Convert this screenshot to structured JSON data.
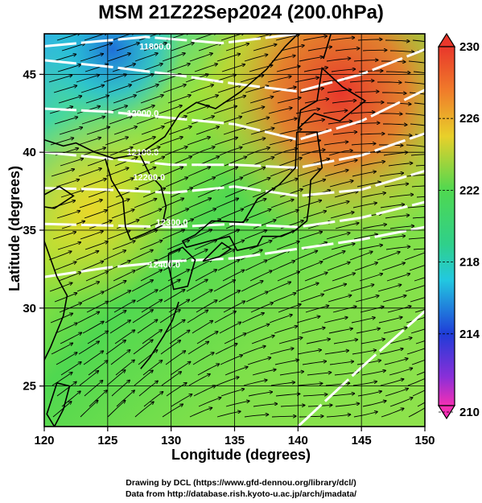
{
  "title": "MSM 21Z22Sep2024 (200.0hPa)",
  "x_axis": {
    "label": "Longitude (degrees)",
    "ticks": [
      "120",
      "125",
      "130",
      "135",
      "140",
      "145",
      "150"
    ]
  },
  "y_axis": {
    "label": "Latitude  (degrees)",
    "ticks": [
      "25",
      "30",
      "35",
      "40",
      "45"
    ]
  },
  "colorbar": {
    "ticks": [
      "230",
      "226",
      "222",
      "218",
      "214",
      "210"
    ],
    "min": 210,
    "max": 230
  },
  "contour_labels": [
    "11800.0",
    "12000.0",
    "12100.0",
    "12200.0",
    "12300.0",
    "12400.0"
  ],
  "credits": {
    "line1": "Drawing by DCL (https://www.gfd-dennou.org/library/dcl/)",
    "line2": "Data from http://database.rish.kyoto-u.ac.jp/arch/jmadata/"
  },
  "chart_data": {
    "type": "heatmap",
    "title": "MSM 21Z22Sep2024 (200.0hPa)",
    "xlabel": "Longitude (degrees)",
    "ylabel": "Latitude  (degrees)",
    "xlim": [
      120,
      150
    ],
    "ylim": [
      22.4,
      47.6
    ],
    "color_range": [
      210,
      230
    ],
    "overlays": [
      "streamlines",
      "geopotential height contours (white)",
      "coastlines"
    ],
    "contour_levels": [
      11800,
      12000,
      12100,
      12200,
      12300,
      12400
    ]
  },
  "colors": {
    "cbar_top": "#e8372b",
    "cbar_mid": "#2fd05a",
    "cbar_cyan": "#22c8e0",
    "cbar_blue": "#1f3cd8",
    "cbar_bottom": "#f52fb4"
  }
}
